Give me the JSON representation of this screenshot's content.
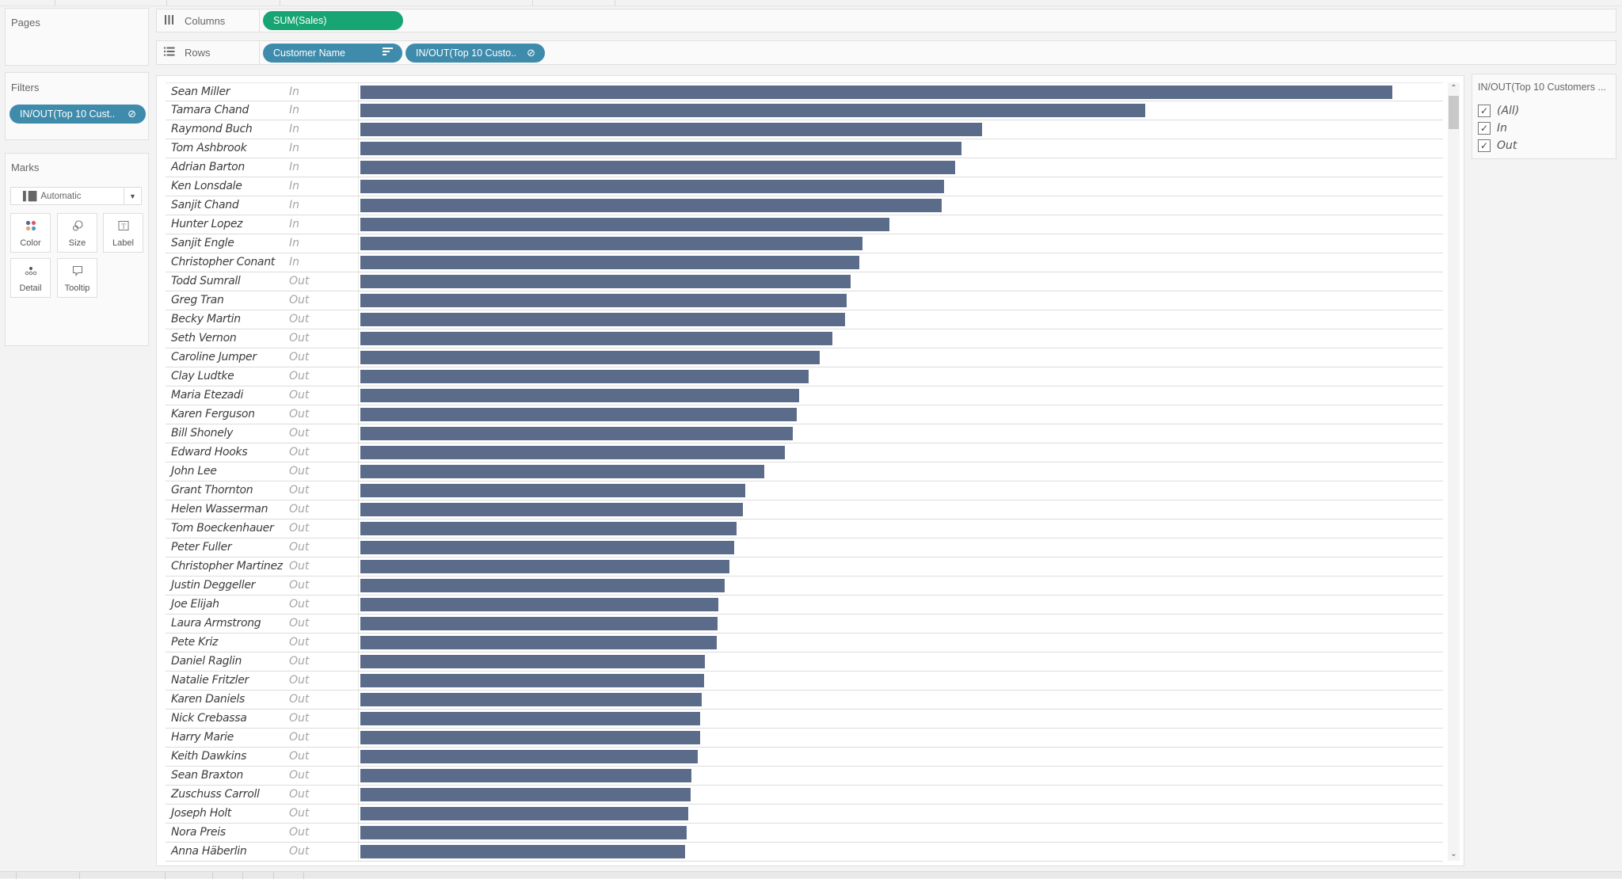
{
  "panels": {
    "pages": {
      "title": "Pages"
    },
    "filters": {
      "title": "Filters",
      "pill": {
        "label": "IN/OUT(Top 10 Cust..",
        "icon": "set-icon"
      }
    },
    "marks": {
      "title": "Marks",
      "mark_type": {
        "label": "Automatic",
        "icon": "bar-chart-icon"
      },
      "buttons": [
        {
          "label": "Color",
          "icon": "color-dots-icon"
        },
        {
          "label": "Size",
          "icon": "size-circles-icon"
        },
        {
          "label": "Label",
          "icon": "text-label-icon"
        },
        {
          "label": "Detail",
          "icon": "detail-dots-icon"
        },
        {
          "label": "Tooltip",
          "icon": "speech-bubble-icon"
        }
      ]
    }
  },
  "shelves": {
    "columns": {
      "label": "Columns",
      "icon": "columns-icon",
      "pills": [
        {
          "label": "SUM(Sales)",
          "type": "measure",
          "color": "#17a673"
        }
      ]
    },
    "rows": {
      "label": "Rows",
      "icon": "rows-icon",
      "pills": [
        {
          "label": "Customer Name",
          "type": "dimension",
          "icon": "sort-descending-icon",
          "color": "#3f8bab"
        },
        {
          "label": "IN/OUT(Top 10 Custo..",
          "type": "set",
          "icon": "set-icon",
          "color": "#3f8bab"
        }
      ]
    }
  },
  "filter_card": {
    "title": "IN/OUT(Top 10 Customers ...",
    "items": [
      {
        "label": "(All)",
        "checked": true
      },
      {
        "label": "In",
        "checked": true
      },
      {
        "label": "Out",
        "checked": true
      }
    ]
  },
  "colors": {
    "bar": "#5b6b8a",
    "measure_pill": "#17a673",
    "dimension_pill": "#3f8bab"
  },
  "chart_data": {
    "type": "bar",
    "orientation": "horizontal",
    "title": "",
    "xlabel": "SUM(Sales)",
    "ylabel": "Customer Name / IN/OUT(Top 10 Customers)",
    "value_units": "relative bar length in px (no axis shown)",
    "categories": [
      "Sean Miller",
      "Tamara Chand",
      "Raymond Buch",
      "Tom Ashbrook",
      "Adrian Barton",
      "Ken Lonsdale",
      "Sanjit Chand",
      "Hunter Lopez",
      "Sanjit Engle",
      "Christopher Conant",
      "Todd Sumrall",
      "Greg Tran",
      "Becky Martin",
      "Seth Vernon",
      "Caroline Jumper",
      "Clay Ludtke",
      "Maria Etezadi",
      "Karen Ferguson",
      "Bill Shonely",
      "Edward Hooks",
      "John Lee",
      "Grant Thornton",
      "Helen Wasserman",
      "Tom Boeckenhauer",
      "Peter Fuller",
      "Christopher Martinez",
      "Justin Deggeller",
      "Joe Elijah",
      "Laura Armstrong",
      "Pete Kriz",
      "Daniel Raglin",
      "Natalie Fritzler",
      "Karen Daniels",
      "Nick Crebassa",
      "Harry Marie",
      "Keith Dawkins",
      "Sean Braxton",
      "Zuschuss Carroll",
      "Joseph Holt",
      "Nora Preis",
      "Anna Häberlin"
    ],
    "in_out": [
      "In",
      "In",
      "In",
      "In",
      "In",
      "In",
      "In",
      "In",
      "In",
      "In",
      "Out",
      "Out",
      "Out",
      "Out",
      "Out",
      "Out",
      "Out",
      "Out",
      "Out",
      "Out",
      "Out",
      "Out",
      "Out",
      "Out",
      "Out",
      "Out",
      "Out",
      "Out",
      "Out",
      "Out",
      "Out",
      "Out",
      "Out",
      "Out",
      "Out",
      "Out",
      "Out",
      "Out",
      "Out",
      "Out",
      "Out"
    ],
    "values": [
      1303,
      991,
      785,
      759,
      751,
      737,
      734,
      668,
      634,
      630,
      619,
      614,
      612,
      596,
      580,
      566,
      554,
      551,
      546,
      536,
      510,
      486,
      483,
      475,
      472,
      466,
      460,
      452,
      451,
      450,
      435,
      434,
      431,
      429,
      429,
      426,
      418,
      417,
      414,
      412,
      410
    ],
    "grid": false,
    "legend": "none"
  },
  "rows": [
    {
      "name": "Sean Miller",
      "set": "In",
      "bar": 1303
    },
    {
      "name": "Tamara Chand",
      "set": "In",
      "bar": 991
    },
    {
      "name": "Raymond Buch",
      "set": "In",
      "bar": 785
    },
    {
      "name": "Tom Ashbrook",
      "set": "In",
      "bar": 759
    },
    {
      "name": "Adrian Barton",
      "set": "In",
      "bar": 751
    },
    {
      "name": "Ken Lonsdale",
      "set": "In",
      "bar": 737
    },
    {
      "name": "Sanjit Chand",
      "set": "In",
      "bar": 734
    },
    {
      "name": "Hunter Lopez",
      "set": "In",
      "bar": 668
    },
    {
      "name": "Sanjit Engle",
      "set": "In",
      "bar": 634
    },
    {
      "name": "Christopher Conant",
      "set": "In",
      "bar": 630
    },
    {
      "name": "Todd Sumrall",
      "set": "Out",
      "bar": 619
    },
    {
      "name": "Greg Tran",
      "set": "Out",
      "bar": 614
    },
    {
      "name": "Becky Martin",
      "set": "Out",
      "bar": 612
    },
    {
      "name": "Seth Vernon",
      "set": "Out",
      "bar": 596
    },
    {
      "name": "Caroline Jumper",
      "set": "Out",
      "bar": 580
    },
    {
      "name": "Clay Ludtke",
      "set": "Out",
      "bar": 566
    },
    {
      "name": "Maria Etezadi",
      "set": "Out",
      "bar": 554
    },
    {
      "name": "Karen Ferguson",
      "set": "Out",
      "bar": 551
    },
    {
      "name": "Bill Shonely",
      "set": "Out",
      "bar": 546
    },
    {
      "name": "Edward Hooks",
      "set": "Out",
      "bar": 536
    },
    {
      "name": "John Lee",
      "set": "Out",
      "bar": 510
    },
    {
      "name": "Grant Thornton",
      "set": "Out",
      "bar": 486
    },
    {
      "name": "Helen Wasserman",
      "set": "Out",
      "bar": 483
    },
    {
      "name": "Tom Boeckenhauer",
      "set": "Out",
      "bar": 475
    },
    {
      "name": "Peter Fuller",
      "set": "Out",
      "bar": 472
    },
    {
      "name": "Christopher Martinez",
      "set": "Out",
      "bar": 466
    },
    {
      "name": "Justin Deggeller",
      "set": "Out",
      "bar": 460
    },
    {
      "name": "Joe Elijah",
      "set": "Out",
      "bar": 452
    },
    {
      "name": "Laura Armstrong",
      "set": "Out",
      "bar": 451
    },
    {
      "name": "Pete Kriz",
      "set": "Out",
      "bar": 450
    },
    {
      "name": "Daniel Raglin",
      "set": "Out",
      "bar": 435
    },
    {
      "name": "Natalie Fritzler",
      "set": "Out",
      "bar": 434
    },
    {
      "name": "Karen Daniels",
      "set": "Out",
      "bar": 431
    },
    {
      "name": "Nick Crebassa",
      "set": "Out",
      "bar": 429
    },
    {
      "name": "Harry Marie",
      "set": "Out",
      "bar": 429
    },
    {
      "name": "Keith Dawkins",
      "set": "Out",
      "bar": 426
    },
    {
      "name": "Sean Braxton",
      "set": "Out",
      "bar": 418
    },
    {
      "name": "Zuschuss Carroll",
      "set": "Out",
      "bar": 417
    },
    {
      "name": "Joseph Holt",
      "set": "Out",
      "bar": 414
    },
    {
      "name": "Nora Preis",
      "set": "Out",
      "bar": 412
    },
    {
      "name": "Anna Häberlin",
      "set": "Out",
      "bar": 410
    }
  ],
  "scrollbar": {
    "up_icon": "chevron-up-icon",
    "down_icon": "chevron-down-icon"
  }
}
